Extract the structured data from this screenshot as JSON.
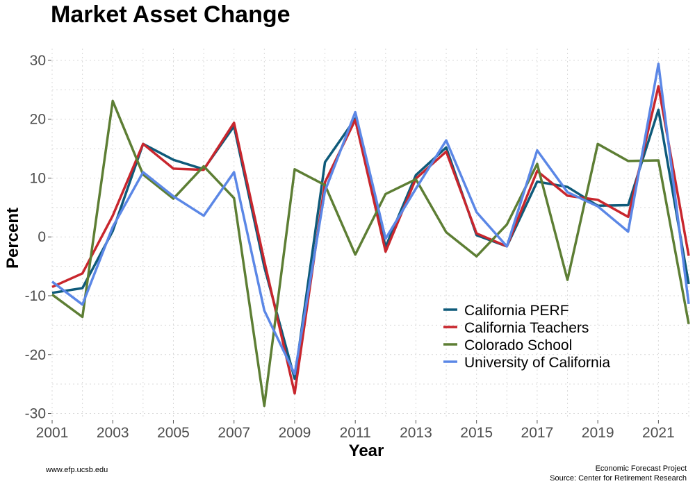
{
  "chart_data": {
    "type": "line",
    "title": "Market Asset Change",
    "xlabel": "Year",
    "ylabel": "Percent",
    "x": [
      2001,
      2002,
      2003,
      2004,
      2005,
      2006,
      2007,
      2008,
      2009,
      2010,
      2011,
      2012,
      2013,
      2014,
      2015,
      2016,
      2017,
      2018,
      2019,
      2020,
      2021,
      2022
    ],
    "xlim": [
      2001,
      2022
    ],
    "ylim": [
      -31,
      32
    ],
    "x_ticks": [
      2001,
      2003,
      2005,
      2007,
      2009,
      2011,
      2013,
      2015,
      2017,
      2019,
      2021
    ],
    "x_tick_labels": [
      "2001",
      "2003",
      "2005",
      "2007",
      "2009",
      "2011",
      "2013",
      "2015",
      "2017",
      "2019",
      "2021"
    ],
    "y_ticks": [
      -30,
      -20,
      -10,
      0,
      10,
      20,
      30
    ],
    "y_tick_labels": [
      "-30",
      "-20",
      "-10",
      "0",
      "10",
      "20",
      "30"
    ],
    "grid": true,
    "legend_position": "bottom-right",
    "series": [
      {
        "name": "California PERF",
        "color": "#0e5a7a",
        "values": [
          -9.5,
          -8.7,
          1.0,
          15.8,
          13.1,
          11.5,
          18.8,
          -5.1,
          -24.1,
          12.7,
          20.1,
          -1.7,
          10.5,
          15.2,
          0.3,
          -1.6,
          9.4,
          8.5,
          5.3,
          5.4,
          21.6,
          -8.0
        ]
      },
      {
        "name": "California Teachers",
        "color": "#c8262d",
        "values": [
          -8.5,
          -6.2,
          3.6,
          15.8,
          11.6,
          11.4,
          19.4,
          -4.1,
          -26.6,
          9.3,
          19.9,
          -2.5,
          9.9,
          14.5,
          0.6,
          -1.6,
          11.2,
          7.0,
          6.3,
          3.4,
          25.6,
          -3.2
        ]
      },
      {
        "name": "Colorado School",
        "color": "#5d7e34",
        "values": [
          -9.8,
          -13.6,
          23.1,
          10.6,
          6.5,
          12.0,
          6.6,
          -28.7,
          11.5,
          8.8,
          -3.0,
          7.3,
          9.8,
          0.8,
          -3.3,
          2.1,
          12.4,
          -7.3,
          15.8,
          12.9,
          13.0,
          -14.8
        ]
      },
      {
        "name": "University of California",
        "color": "#5b87e6",
        "values": [
          -7.6,
          -11.5,
          1.7,
          11.0,
          6.9,
          3.6,
          11.0,
          -12.5,
          -23.3,
          7.8,
          21.2,
          -0.3,
          8.2,
          16.4,
          4.2,
          -1.6,
          14.7,
          7.6,
          5.2,
          0.9,
          29.4,
          -11.4
        ]
      }
    ]
  },
  "footer": {
    "left": "www.efp.ucsb.edu",
    "right_line1": "Economic Forecast Project",
    "right_line2": "Source: Center for Retirement Research"
  }
}
